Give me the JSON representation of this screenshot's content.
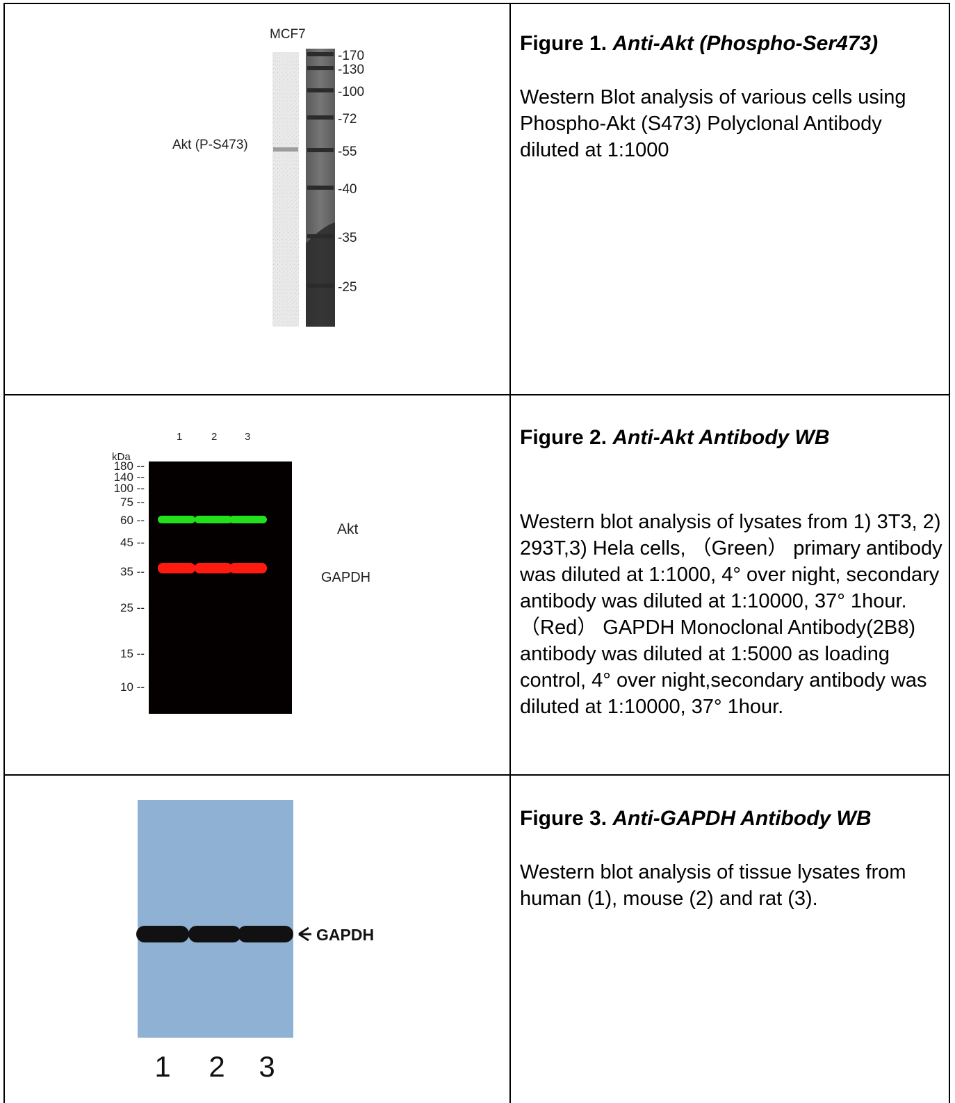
{
  "figures": [
    {
      "title_prefix": "Figure 1.",
      "title_name": "Anti-Akt (Phospho-Ser473)",
      "description": "Western Blot analysis of various cells using Phospho-Akt (S473) Polyclonal Antibody diluted at 1:1000",
      "blot": {
        "sample_label": "MCF7",
        "band_label": "Akt (P-S473)",
        "markers": [
          "-170",
          "-130",
          "-100",
          "-72",
          "-55",
          "-40",
          "-35",
          "-25"
        ]
      }
    },
    {
      "title_prefix": "Figure 2.",
      "title_name": "Anti-Akt Antibody WB",
      "description": "Western blot analysis of lysates from 1) 3T3, 2) 293T,3) Hela cells, （Green） primary antibody was diluted at 1:1000, 4° over night, secondary antibody was diluted at 1:10000, 37° 1hour. （Red） GAPDH Monoclonal Antibody(2B8) antibody was diluted at 1:5000 as loading control, 4° over night,secondary antibody was diluted at 1:10000, 37° 1hour.",
      "blot": {
        "unit_label": "kDa",
        "lanes": [
          "1",
          "2",
          "3"
        ],
        "markers": [
          "180 --",
          "140 --",
          "100 --",
          "75 --",
          "60 --",
          "45 --",
          "35 --",
          "25 --",
          "15 --",
          "10 --"
        ],
        "band_labels": [
          "Akt",
          "GAPDH"
        ],
        "band_colors": [
          "#22e01a",
          "#ff1a10"
        ]
      }
    },
    {
      "title_prefix": "Figure 3.",
      "title_name": "Anti-GAPDH Antibody WB",
      "description": "Western blot analysis of tissue lysates from human (1), mouse (2) and rat (3).",
      "blot": {
        "band_label": "GAPDH",
        "lanes": [
          "1",
          "2",
          "3"
        ],
        "membrane_color": "#8fb1d3"
      }
    }
  ]
}
